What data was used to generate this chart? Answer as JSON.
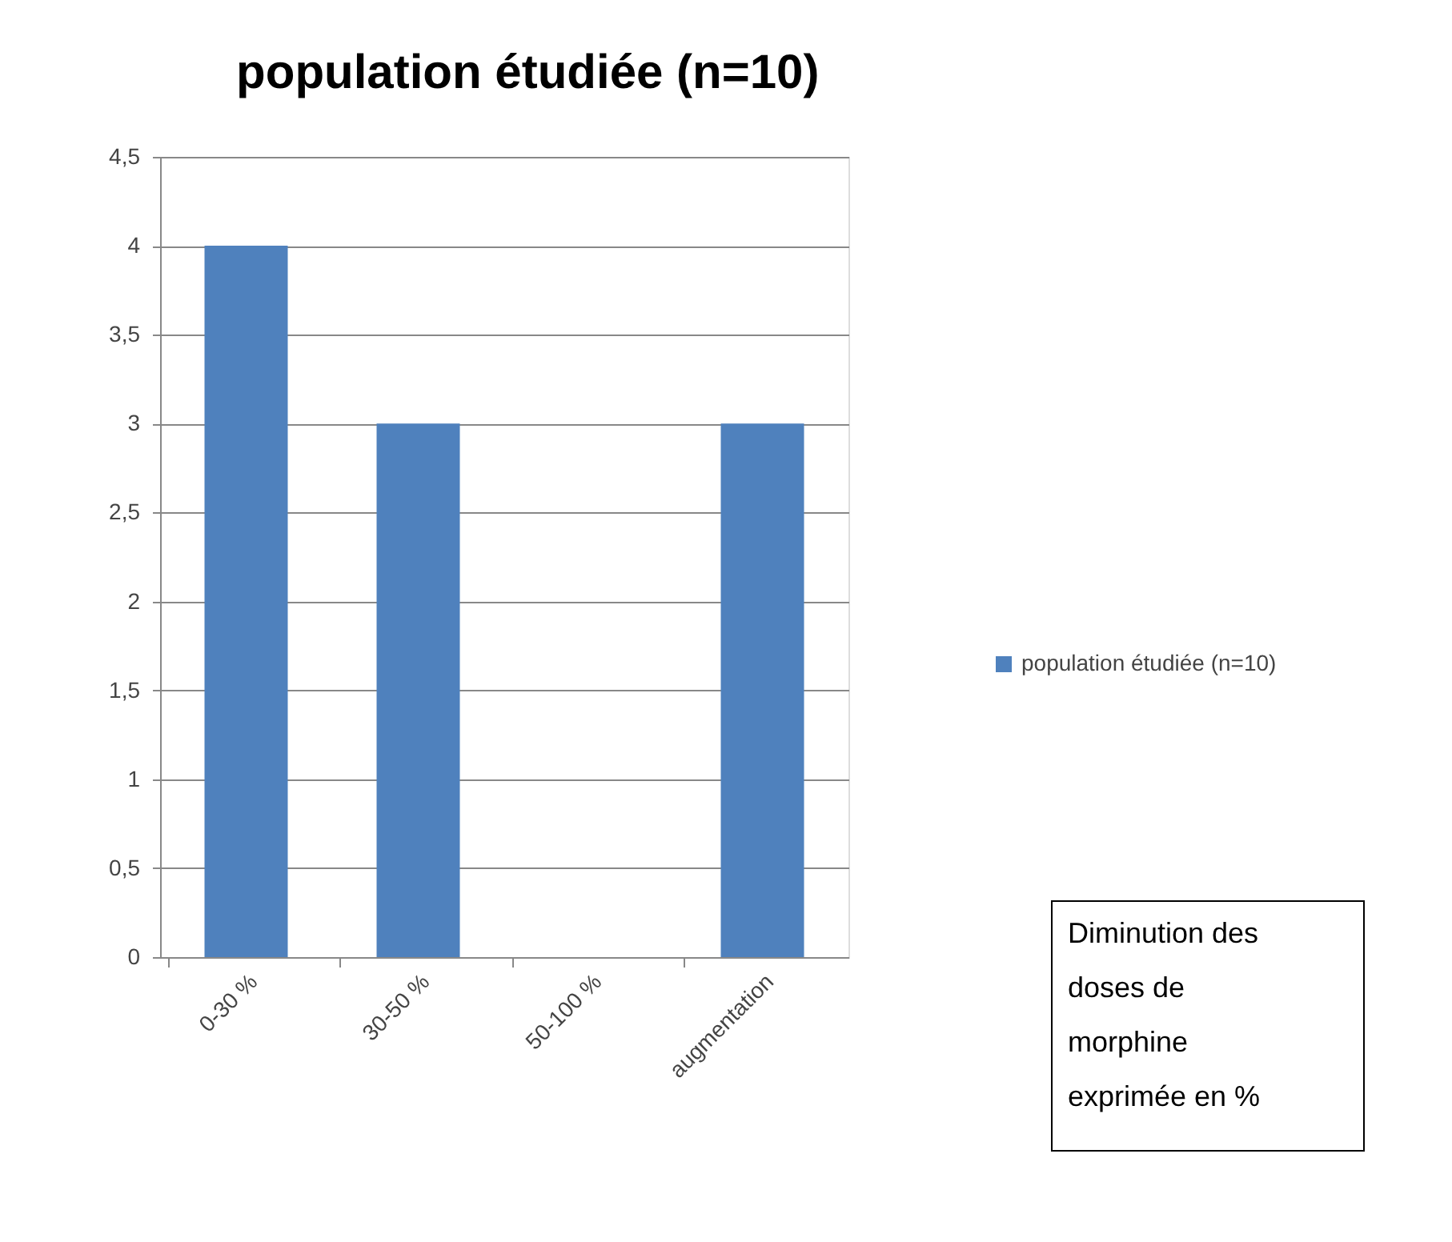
{
  "chart_data": {
    "type": "bar",
    "title": "population étudiée (n=10)",
    "categories": [
      "0-30 %",
      "30-50 %",
      "50-100 %",
      "augmentation"
    ],
    "series": [
      {
        "name": "population étudiée (n=10)",
        "color": "#4f81bd",
        "values": [
          4,
          3,
          0,
          3
        ]
      }
    ],
    "ylim": [
      0,
      4.5
    ],
    "yticks": [
      0,
      {
        "value": 0.5,
        "label": "0,5"
      },
      1,
      {
        "value": 1.5,
        "label": "1,5"
      },
      2,
      {
        "value": 2.5,
        "label": "2,5"
      },
      3,
      {
        "value": 3.5,
        "label": "3,5"
      },
      4,
      {
        "value": 4.5,
        "label": "4,5"
      }
    ],
    "grid": "y",
    "legend": "right",
    "annotations": [
      "Diminution des doses de morphine exprimée en %"
    ]
  }
}
